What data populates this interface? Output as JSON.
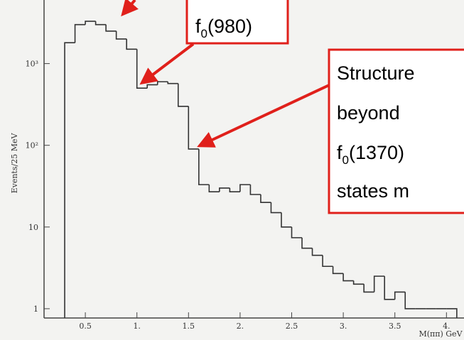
{
  "chart_data": {
    "type": "histogram",
    "x_label": "M(ππ) GeV",
    "y_label": "Events/25 MeV",
    "bins": [
      0.3,
      0.4,
      0.5,
      0.6,
      0.7,
      0.8,
      0.9,
      1.0,
      1.1,
      1.2,
      1.3,
      1.4,
      1.5,
      1.6,
      1.7,
      1.8,
      1.9,
      2.0,
      2.1,
      2.2,
      2.3,
      2.4,
      2.5,
      2.6,
      2.7,
      2.8,
      2.9,
      3.0,
      3.1,
      3.2,
      3.3,
      3.4,
      3.5,
      3.6,
      3.7,
      3.8,
      3.9,
      4.0,
      4.1
    ],
    "values": [
      1800,
      3000,
      3300,
      3000,
      2500,
      2000,
      1500,
      500,
      550,
      600,
      570,
      300,
      90,
      33,
      27,
      30,
      27,
      33,
      25,
      20,
      15,
      10,
      7.4,
      5.5,
      4.5,
      3.3,
      2.7,
      2.2,
      2,
      1.6,
      2.5,
      1.3,
      1.6,
      1,
      1,
      1,
      1,
      1
    ],
    "color": "#333333",
    "log_y": true,
    "xlim": [
      0.1,
      4.17
    ],
    "ylim": [
      0.77,
      6000
    ],
    "xticks": [
      0.5,
      {
        "value": 1,
        "label": "1."
      },
      1.5,
      {
        "value": 2,
        "label": "2."
      },
      2.5,
      {
        "value": 3,
        "label": "3."
      },
      3.5,
      {
        "value": 4,
        "label": "4."
      }
    ],
    "yticks": [
      1,
      10,
      {
        "value": 100,
        "label": "10²"
      },
      {
        "value": 1000,
        "label": "10³"
      }
    ],
    "annotations": [
      {
        "base": "f",
        "sub": "0",
        "rest": "(980)"
      },
      {
        "lines": [
          "Structure",
          "beyond"
        ],
        "base": "f",
        "sub": "0",
        "rest": "(1370)",
        "last": "states m"
      }
    ]
  }
}
